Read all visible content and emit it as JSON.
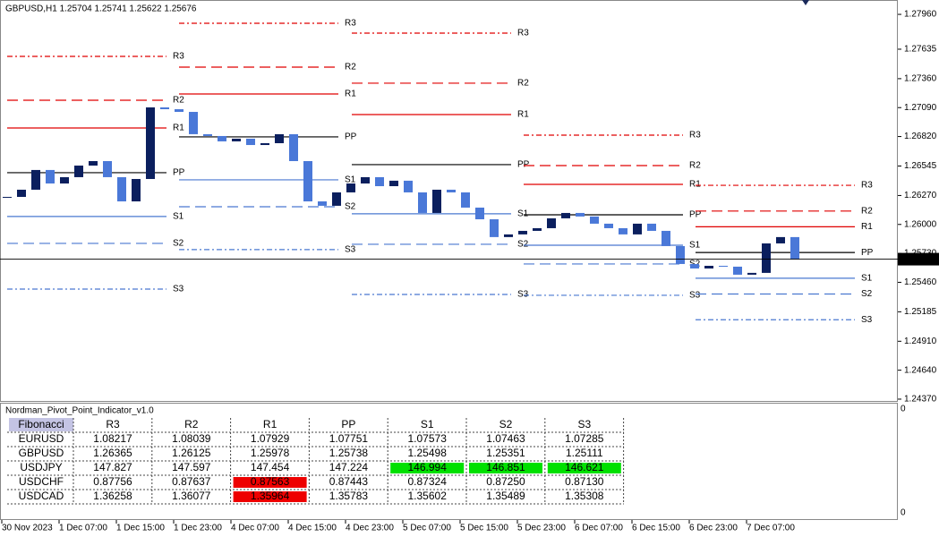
{
  "header": "GBPUSD,H1  1.25704 1.25741 1.25622 1.25676",
  "price_axis": {
    "ylim": [
      1.24353,
      1.28094
    ],
    "ticks": [
      {
        "value": 1.2796,
        "label": "1.27960"
      },
      {
        "value": 1.27635,
        "label": "1.27635"
      },
      {
        "value": 1.2736,
        "label": "1.27360"
      },
      {
        "value": 1.2709,
        "label": "1.27090"
      },
      {
        "value": 1.2682,
        "label": "1.26820"
      },
      {
        "value": 1.26545,
        "label": "1.26545"
      },
      {
        "value": 1.2627,
        "label": "1.26270"
      },
      {
        "value": 1.26,
        "label": "1.26000"
      },
      {
        "value": 1.2573,
        "label": "1.25730"
      },
      {
        "value": 1.2546,
        "label": "1.25460"
      },
      {
        "value": 1.25185,
        "label": "1.25185"
      },
      {
        "value": 1.2491,
        "label": "1.24910"
      },
      {
        "value": 1.2464,
        "label": "1.24640"
      },
      {
        "value": 1.2437,
        "label": "1.24370"
      }
    ]
  },
  "current_price": {
    "value": 1.25676,
    "label": "1.25676"
  },
  "candles": {
    "up_color": "#0b1f5e",
    "down_color": "#4a78d8",
    "closes": [
      1.26257,
      1.26324,
      1.26508,
      1.26382,
      1.26441,
      1.26549,
      1.26591,
      1.26441,
      1.26215,
      1.26424,
      1.27092,
      1.27075,
      1.2705,
      1.26842,
      1.26825,
      1.26775,
      1.268,
      1.26741,
      1.26758,
      1.26842,
      1.26591,
      1.26215,
      1.26174,
      1.26299,
      1.26382,
      1.26441,
      1.26357,
      1.26408,
      1.26299,
      1.26107,
      1.26324,
      1.26299,
      1.26157,
      1.26048,
      1.25882,
      1.25907,
      1.2594,
      1.25965,
      1.26057,
      1.26107,
      1.26074,
      1.26007,
      1.25965,
      1.25907,
      1.26007,
      1.2594,
      1.25798,
      1.25631,
      1.25589,
      1.25614,
      1.25606,
      1.25531,
      1.25548,
      1.25823,
      1.25882,
      1.25676
    ]
  },
  "pivot_colors": {
    "R": "#e00000",
    "PP": "#000000",
    "S": "#4a78d0"
  },
  "pivot_days": [
    [
      {
        "name": "R3",
        "value": 1.27568
      },
      {
        "name": "R2",
        "value": 1.27159
      },
      {
        "name": "R1",
        "value": 1.269
      },
      {
        "name": "PP",
        "value": 1.26483
      },
      {
        "name": "S1",
        "value": 1.26074
      },
      {
        "name": "S2",
        "value": 1.25823
      },
      {
        "name": "S3",
        "value": 1.25397
      }
    ],
    [
      {
        "name": "R3",
        "value": 1.27877
      },
      {
        "name": "R2",
        "value": 1.27468
      },
      {
        "name": "R1",
        "value": 1.27217
      },
      {
        "name": "PP",
        "value": 1.26817
      },
      {
        "name": "S1",
        "value": 1.26416
      },
      {
        "name": "S2",
        "value": 1.26165
      },
      {
        "name": "S3",
        "value": 1.25765
      }
    ],
    [
      {
        "name": "R3",
        "value": 1.27785
      },
      {
        "name": "R2",
        "value": 1.27318
      },
      {
        "name": "R1",
        "value": 1.27025
      },
      {
        "name": "PP",
        "value": 1.26558
      },
      {
        "name": "S1",
        "value": 1.26099
      },
      {
        "name": "S2",
        "value": 1.25815
      },
      {
        "name": "S3",
        "value": 1.25347
      }
    ],
    [
      {
        "name": "R3",
        "value": 1.26833
      },
      {
        "name": "R2",
        "value": 1.26549
      },
      {
        "name": "R1",
        "value": 1.26374
      },
      {
        "name": "PP",
        "value": 1.2609
      },
      {
        "name": "S1",
        "value": 1.25806
      },
      {
        "name": "S2",
        "value": 1.25631
      },
      {
        "name": "S3",
        "value": 1.25339
      }
    ],
    [
      {
        "name": "R3",
        "value": 1.26365
      },
      {
        "name": "R2",
        "value": 1.26125
      },
      {
        "name": "R1",
        "value": 1.25978
      },
      {
        "name": "PP",
        "value": 1.25738
      },
      {
        "name": "S1",
        "value": 1.25498
      },
      {
        "name": "S2",
        "value": 1.25351
      },
      {
        "name": "S3",
        "value": 1.25111
      }
    ]
  ],
  "indicator": {
    "title": "Nordman_Pivot_Point_Indicator_v1.0",
    "scale_labels": [
      "0",
      "0"
    ],
    "table": {
      "method": "Fibonacci",
      "columns": [
        "R3",
        "R2",
        "R1",
        "PP",
        "S1",
        "S2",
        "S3"
      ],
      "rows": [
        {
          "symbol": "EURUSD",
          "values": [
            "1.08217",
            "1.08039",
            "1.07929",
            "1.07751",
            "1.07573",
            "1.07463",
            "1.07285"
          ]
        },
        {
          "symbol": "GBPUSD",
          "values": [
            "1.26365",
            "1.26125",
            "1.25978",
            "1.25738",
            "1.25498",
            "1.25351",
            "1.25111"
          ]
        },
        {
          "symbol": "USDJPY",
          "values": [
            "147.827",
            "147.597",
            "147.454",
            "147.224",
            "146.994",
            "146.851",
            "146.621"
          ],
          "highlights": [
            {
              "col": 4,
              "color": "#00e000"
            },
            {
              "col": 5,
              "color": "#00e000"
            },
            {
              "col": 6,
              "color": "#00e000"
            }
          ]
        },
        {
          "symbol": "USDCHF",
          "values": [
            "0.87756",
            "0.87637",
            "0.87563",
            "0.87443",
            "0.87324",
            "0.87250",
            "0.87130"
          ],
          "highlights": [
            {
              "col": 2,
              "color": "#ee0000"
            }
          ]
        },
        {
          "symbol": "USDCAD",
          "values": [
            "1.36258",
            "1.36077",
            "1.35964",
            "1.35783",
            "1.35602",
            "1.35489",
            "1.35308"
          ],
          "highlights": [
            {
              "col": 2,
              "color": "#ee0000"
            }
          ]
        }
      ]
    }
  },
  "time_axis": [
    "30 Nov 2023",
    "1 Dec 07:00",
    "1 Dec 15:00",
    "1 Dec 23:00",
    "4 Dec 07:00",
    "4 Dec 15:00",
    "4 Dec 23:00",
    "5 Dec 07:00",
    "5 Dec 15:00",
    "5 Dec 23:00",
    "6 Dec 07:00",
    "6 Dec 15:00",
    "6 Dec 23:00",
    "7 Dec 07:00"
  ]
}
